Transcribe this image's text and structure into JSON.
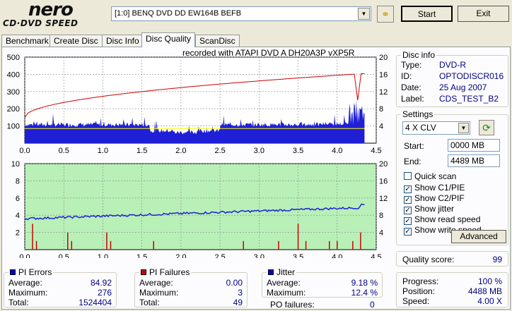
{
  "header": {
    "logo_top": "nero",
    "logo_bottom": "CD·DVD SPEED",
    "drive": "[1:0]  BENQ DVD DD EW164B BEFB",
    "start_label": "Start",
    "exit_label": "Exit"
  },
  "tabs": [
    "Benchmark",
    "Create Disc",
    "Disc Info",
    "Disc Quality",
    "ScanDisc"
  ],
  "active_tab": "Disc Quality",
  "recorded_with": "recorded with ATAPI    DVD A   DH20A3P    vXP5R",
  "disc_info": {
    "title": "Disc info",
    "type_label": "Type:",
    "type": "DVD-R",
    "id_label": "ID:",
    "id": "OPTODISCR016",
    "date_label": "Date:",
    "date": "25 Aug 2007",
    "label_label": "Label:",
    "label": "CDS_TEST_B2"
  },
  "settings": {
    "title": "Settings",
    "speed": "4 X CLV",
    "start_label": "Start:",
    "start": "0000 MB",
    "end_label": "End:",
    "end": "4489 MB",
    "quick_scan": "Quick scan",
    "show_c1": "Show C1/PIE",
    "show_c2": "Show C2/PIF",
    "show_jitter": "Show jitter",
    "show_read": "Show read speed",
    "show_write": "Show write speed",
    "advanced": "Advanced"
  },
  "quality": {
    "label": "Quality score:",
    "value": "99"
  },
  "progress": {
    "progress_label": "Progress:",
    "progress": "100 %",
    "position_label": "Position:",
    "position": "4488 MB",
    "speed_label": "Speed:",
    "speed": "4.00 X"
  },
  "pi_errors": {
    "title": "PI Errors",
    "avg_label": "Average:",
    "avg": "84.92",
    "max_label": "Maximum:",
    "max": "276",
    "total_label": "Total:",
    "total": "1524404"
  },
  "pi_failures": {
    "title": "PI Failures",
    "avg_label": "Average:",
    "avg": "0.00",
    "max_label": "Maximum:",
    "max": "3",
    "total_label": "Total:",
    "total": "49"
  },
  "jitter": {
    "title": "Jitter",
    "avg_label": "Average:",
    "avg": "9.18 %",
    "max_label": "Maximum:",
    "max": "12.4 %",
    "po_label": "PO failures:",
    "po": "0"
  },
  "colors": {
    "pie": "#0000cc",
    "pif": "#cc0000",
    "jitter": "#0000cc",
    "speed": "#cc0000",
    "chart2_bg": "#b8f0b8"
  },
  "chart_data": [
    {
      "type": "area",
      "x_ticks": [
        "0.0",
        "0.5",
        "1.0",
        "1.5",
        "2.0",
        "2.5",
        "3.0",
        "3.5",
        "4.0",
        "4.5"
      ],
      "y_left_ticks": [
        "100",
        "200",
        "300",
        "400",
        "500"
      ],
      "y_right_ticks": [
        "4",
        "8",
        "12",
        "16",
        "20"
      ],
      "xlim": [
        0,
        4.5
      ],
      "ylim": [
        0,
        500
      ],
      "y2lim": [
        0,
        20
      ]
    },
    {
      "type": "bar",
      "x_ticks": [
        "0.0",
        "0.5",
        "1.0",
        "1.5",
        "2.0",
        "2.5",
        "3.0",
        "3.5",
        "4.0",
        "4.5"
      ],
      "y_left_ticks": [
        "2",
        "4",
        "6",
        "8",
        "10"
      ],
      "y_right_ticks": [
        "4",
        "8",
        "12",
        "16",
        "20"
      ],
      "xlim": [
        0,
        4.5
      ],
      "ylim": [
        0,
        10
      ],
      "y2lim": [
        0,
        20
      ]
    }
  ]
}
